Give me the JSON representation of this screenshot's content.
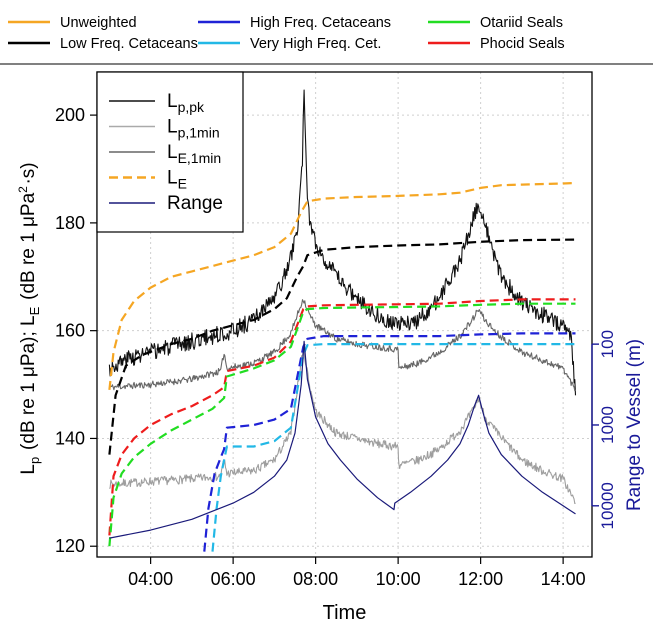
{
  "chart_data": {
    "type": "line",
    "xlabel": "Time",
    "ylabel_left": "L_p (dB re 1 μPa); L_E (dB re 1 μPa²·s)",
    "ylabel_right": "Range to Vessel (m)",
    "x_unit": "time of day (hours)",
    "xlim": [
      2.7,
      14.7
    ],
    "ylim": [
      118,
      208
    ],
    "x_ticks": [
      {
        "value": 4,
        "label": "04:00"
      },
      {
        "value": 6,
        "label": "06:00"
      },
      {
        "value": 8,
        "label": "08:00"
      },
      {
        "value": 10,
        "label": "10:00"
      },
      {
        "value": 12,
        "label": "12:00"
      },
      {
        "value": 14,
        "label": "14:00"
      }
    ],
    "y_ticks": [
      120,
      140,
      160,
      180,
      200
    ],
    "right_axis": {
      "scale": "log-reversed",
      "range_m": [
        100,
        10000
      ],
      "ticks": [
        {
          "value": 100,
          "label": "100",
          "y": 157.5
        },
        {
          "value": 1000,
          "label": "1000",
          "y": 142.5
        },
        {
          "value": 10000,
          "label": "10000",
          "y": 127.5
        }
      ]
    },
    "grid": true,
    "top_legend": [
      {
        "label": "Unweighted",
        "color": "#f5a623"
      },
      {
        "label": "Low Freq. Cetaceans",
        "color": "#000000"
      },
      {
        "label": "High Freq. Cetaceans",
        "color": "#1f22d6"
      },
      {
        "label": "Very High Freq. Cet.",
        "color": "#22b8e6"
      },
      {
        "label": "Otariid Seals",
        "color": "#22dd22"
      },
      {
        "label": "Phocid Seals",
        "color": "#ee1c1c"
      }
    ],
    "inner_legend": [
      {
        "main": "L",
        "sub": "p,pk",
        "style": "solid",
        "color": "#111111"
      },
      {
        "main": "L",
        "sub": "p,1min",
        "style": "solid",
        "color": "#aaaaaa"
      },
      {
        "main": "L",
        "sub": "E,1min",
        "style": "solid",
        "color": "#666666"
      },
      {
        "main": "L",
        "sub": "E",
        "style": "dashed",
        "color": "#f5a623"
      },
      {
        "main": "Range",
        "sub": "",
        "style": "solid",
        "color": "#1a1a7a"
      }
    ],
    "series": [
      {
        "legend_ref": "L_p,pk",
        "style": "solid",
        "color": "#111111",
        "width": 1.1,
        "noise": 1.6,
        "seed": 3,
        "x": [
          3.0,
          3.5,
          4.0,
          4.5,
          5.0,
          5.5,
          6.0,
          6.5,
          7.0,
          7.3,
          7.55,
          7.68,
          7.72,
          7.8,
          8.0,
          8.5,
          9.0,
          9.5,
          10.0,
          10.5,
          11.0,
          11.5,
          11.8,
          11.95,
          12.1,
          12.3,
          12.6,
          13.0,
          13.5,
          14.0,
          14.2,
          14.3
        ],
        "y": [
          153,
          155,
          156,
          157,
          158,
          159,
          160,
          162,
          166,
          171,
          178,
          192,
          204,
          183,
          176,
          170,
          166,
          163,
          161,
          162,
          166,
          173,
          180,
          184,
          180,
          174,
          169,
          165,
          163,
          161,
          159,
          148
        ]
      },
      {
        "legend_ref": "L_p,1min",
        "style": "solid",
        "color": "#9e9e9e",
        "width": 1.1,
        "noise": 0.8,
        "seed": 7,
        "x": [
          3.0,
          4.0,
          5.0,
          5.7,
          5.78,
          5.85,
          6.5,
          7.0,
          7.4,
          7.7,
          7.85,
          8.0,
          8.5,
          9.0,
          9.5,
          10.0,
          10.02,
          10.5,
          11.0,
          11.5,
          11.8,
          11.95,
          12.1,
          12.4,
          13.0,
          13.5,
          14.0,
          14.3
        ],
        "y": [
          131.5,
          132,
          132.5,
          133,
          136,
          133.5,
          134,
          136,
          141,
          157,
          150,
          145,
          141,
          140,
          139,
          138.5,
          135,
          136,
          138,
          141.5,
          145,
          147.5,
          144,
          141,
          136,
          134,
          132.5,
          128
        ]
      },
      {
        "legend_ref": "L_E,1min",
        "style": "solid",
        "color": "#666666",
        "width": 1.1,
        "noise": 0.6,
        "seed": 11,
        "x": [
          3.0,
          4.0,
          5.0,
          5.7,
          5.78,
          5.85,
          6.5,
          7.0,
          7.4,
          7.7,
          7.85,
          8.0,
          8.5,
          9.0,
          9.5,
          10.0,
          10.02,
          10.5,
          11.0,
          11.5,
          11.8,
          11.95,
          12.1,
          12.4,
          13.0,
          13.5,
          14.0,
          14.3
        ],
        "y": [
          149.5,
          150,
          151,
          152.5,
          156,
          153,
          154,
          156,
          159.5,
          166,
          163,
          161,
          158.5,
          157.5,
          157,
          156.5,
          153,
          154,
          156,
          159,
          162,
          164,
          162,
          159.5,
          156,
          154.5,
          153,
          149
        ]
      },
      {
        "legend_ref": "Unweighted",
        "style": "dashed",
        "color": "#f5a623",
        "width": 2.2,
        "x": [
          3.0,
          3.1,
          3.3,
          3.6,
          4.0,
          4.5,
          5.0,
          5.5,
          6.0,
          6.5,
          7.0,
          7.4,
          7.65,
          7.8,
          8.2,
          9.0,
          10.0,
          11.0,
          11.5,
          12.0,
          12.5,
          13.0,
          14.0,
          14.3
        ],
        "y": [
          149,
          156,
          162,
          165.5,
          168,
          170,
          171,
          172,
          173,
          174,
          175.5,
          178,
          182,
          184,
          184.5,
          184.8,
          185,
          185.3,
          185.6,
          186.5,
          187,
          187.1,
          187.3,
          187.4
        ]
      },
      {
        "legend_ref": "Low Freq. Cetaceans",
        "style": "dashed",
        "color": "#000000",
        "width": 2.2,
        "x": [
          3.0,
          3.15,
          3.4,
          3.8,
          4.5,
          5.0,
          5.5,
          6.0,
          6.5,
          7.0,
          7.3,
          7.55,
          7.7,
          7.8,
          8.2,
          9.0,
          10.0,
          11.0,
          12.0,
          13.0,
          14.3
        ],
        "y": [
          137,
          148,
          153.5,
          155.5,
          157.5,
          158.5,
          160,
          161,
          162,
          164,
          166,
          170,
          172,
          174,
          175,
          175.5,
          175.8,
          176,
          176.5,
          176.8,
          176.9
        ]
      },
      {
        "legend_ref": "Phocid Seals",
        "style": "dashed",
        "color": "#ee1c1c",
        "width": 2.2,
        "x": [
          3.0,
          3.1,
          3.3,
          3.6,
          4.0,
          4.5,
          5.0,
          5.5,
          5.78,
          5.85,
          6.5,
          7.0,
          7.4,
          7.7,
          7.8,
          8.2,
          9.0,
          10.0,
          11.0,
          12.0,
          13.0,
          14.3
        ],
        "y": [
          122,
          133,
          137,
          140,
          142.5,
          144.5,
          146,
          148,
          149.5,
          152.5,
          153.5,
          155,
          158,
          164,
          164.5,
          164.7,
          164.8,
          164.9,
          165,
          165.5,
          165.8,
          165.8
        ]
      },
      {
        "legend_ref": "Otariid Seals",
        "style": "dashed",
        "color": "#22dd22",
        "width": 2.2,
        "x": [
          3.0,
          3.1,
          3.3,
          3.6,
          4.0,
          4.5,
          5.0,
          5.5,
          5.78,
          5.85,
          6.5,
          7.0,
          7.4,
          7.7,
          7.8,
          8.2,
          9.0,
          10.0,
          11.0,
          12.0,
          13.0,
          14.3
        ],
        "y": [
          120,
          129,
          133.5,
          136.5,
          139,
          141.5,
          143.5,
          145.5,
          147.5,
          151.5,
          153,
          154.5,
          157,
          163.5,
          164,
          164.2,
          164.3,
          164.4,
          164.5,
          164.8,
          165,
          165
        ]
      },
      {
        "legend_ref": "High Freq. Cetaceans",
        "style": "dashed",
        "color": "#1f22d6",
        "width": 2.2,
        "x": [
          5.3,
          5.4,
          5.55,
          5.7,
          5.78,
          5.85,
          6.5,
          7.0,
          7.4,
          7.7,
          7.8,
          8.2,
          9.0,
          10.0,
          11.0,
          12.0,
          13.0,
          14.3
        ],
        "y": [
          119,
          127,
          133.5,
          136.5,
          138,
          142,
          142.5,
          143.5,
          145.5,
          157,
          158.5,
          159,
          159,
          159,
          159,
          159.3,
          159.5,
          159.5
        ]
      },
      {
        "legend_ref": "Very High Freq. Cet.",
        "style": "dashed",
        "color": "#22b8e6",
        "width": 2.2,
        "x": [
          5.5,
          5.6,
          5.7,
          5.78,
          5.85,
          6.5,
          7.0,
          7.4,
          7.7,
          7.8,
          8.2,
          9.0,
          10.0,
          11.0,
          12.0,
          13.0,
          14.3
        ],
        "y": [
          119,
          127,
          133,
          136,
          138.5,
          138.5,
          139.5,
          142,
          155.5,
          157.3,
          157.5,
          157.5,
          157.5,
          157.5,
          157.5,
          157.5,
          157.5
        ]
      },
      {
        "legend_ref": "Range",
        "style": "solid",
        "color": "#1a1a7a",
        "width": 1.2,
        "x": [
          3.0,
          4.0,
          5.0,
          5.5,
          6.0,
          6.5,
          7.0,
          7.3,
          7.5,
          7.65,
          7.72,
          7.8,
          8.0,
          8.3,
          8.6,
          9.0,
          9.5,
          9.9,
          9.92,
          10.3,
          10.8,
          11.2,
          11.5,
          11.7,
          11.85,
          11.95,
          12.05,
          12.2,
          12.5,
          13.0,
          13.5,
          14.0,
          14.3
        ],
        "y": [
          121.5,
          123,
          125,
          126.5,
          128,
          130,
          133,
          136,
          141,
          150,
          158,
          151,
          144,
          139,
          136,
          132.5,
          129,
          126.8,
          128,
          130,
          133,
          136,
          139,
          142.5,
          146,
          148,
          145,
          141,
          137,
          133,
          130,
          127.5,
          126
        ]
      }
    ]
  }
}
